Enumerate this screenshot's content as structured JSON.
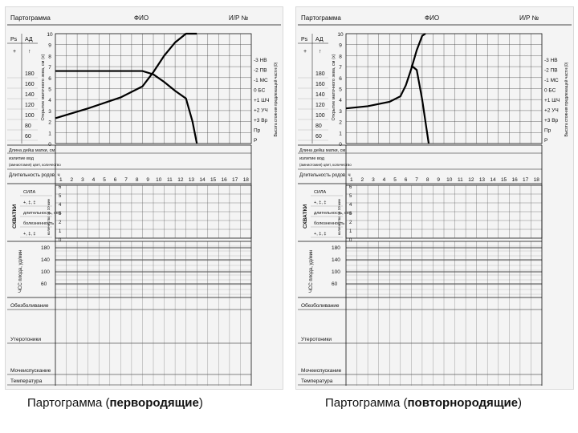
{
  "forms": [
    {
      "header": {
        "title": "Партограмма",
        "fio": "ФИО",
        "history": "И/Р №"
      },
      "caption": {
        "main": "Партограмма (",
        "bold": "первородящие",
        "close": ")"
      }
    },
    {
      "header": {
        "title": "Партограмма",
        "fio": "ФИО",
        "history": "И/Р №"
      },
      "caption": {
        "main": "Партограмма (",
        "bold": "повторнородящие",
        "close": ")"
      }
    }
  ],
  "common": {
    "ps_label": "Ps",
    "ad_label": "АД",
    "ps_sign": "+",
    "ad_sign": "↑",
    "vitals_values": [
      "180",
      "160",
      "140",
      "120",
      "100",
      "80",
      "60"
    ],
    "dilation_axis_label": "Открытие маточного зева, см (x)",
    "dilation_values": [
      "10",
      "9",
      "8",
      "7",
      "6",
      "5",
      "4",
      "3",
      "2",
      "1",
      "0"
    ],
    "head_axis_label": "Высота стояния предлежащей части (0)",
    "station_labels": [
      "-3 НВ",
      "-2 ПВ",
      "-1 МС",
      "0 БС",
      "+1 ШЧ",
      "+2 УЧ",
      "+3 Вр",
      "Пр",
      "Р"
    ],
    "fetal_length_label": "Длина дейш матки, см",
    "amniotic_label": "излитие вод",
    "amniotic_sub": "(амниотомия) цвет, количество",
    "duration_label": "Длительность родов, ч",
    "hours": [
      "1",
      "2",
      "3",
      "4",
      "5",
      "6",
      "7",
      "8",
      "9",
      "10",
      "11",
      "12",
      "13",
      "14",
      "15",
      "16",
      "17",
      "18"
    ],
    "contractions_label": "СХВАТКИ",
    "contraction_rows": [
      "СИЛА",
      "+, ‡, ‡",
      "длительность, сек.",
      "болезненность",
      "+, ‡, ‡"
    ],
    "contraction_scale_label": "количество за 10 мин",
    "contraction_scale": [
      "6",
      "5",
      "4",
      "3",
      "2",
      "1",
      "0"
    ],
    "fhr_label": "ЧСС плода, уд/мин",
    "fhr_values": [
      "180",
      "140",
      "100",
      "60"
    ],
    "analgesia_label": "Обезболивание",
    "uterotonics_label": "Утеротоники",
    "urination_label": "Мочеиспускание",
    "temperature_label": "Температура"
  }
}
